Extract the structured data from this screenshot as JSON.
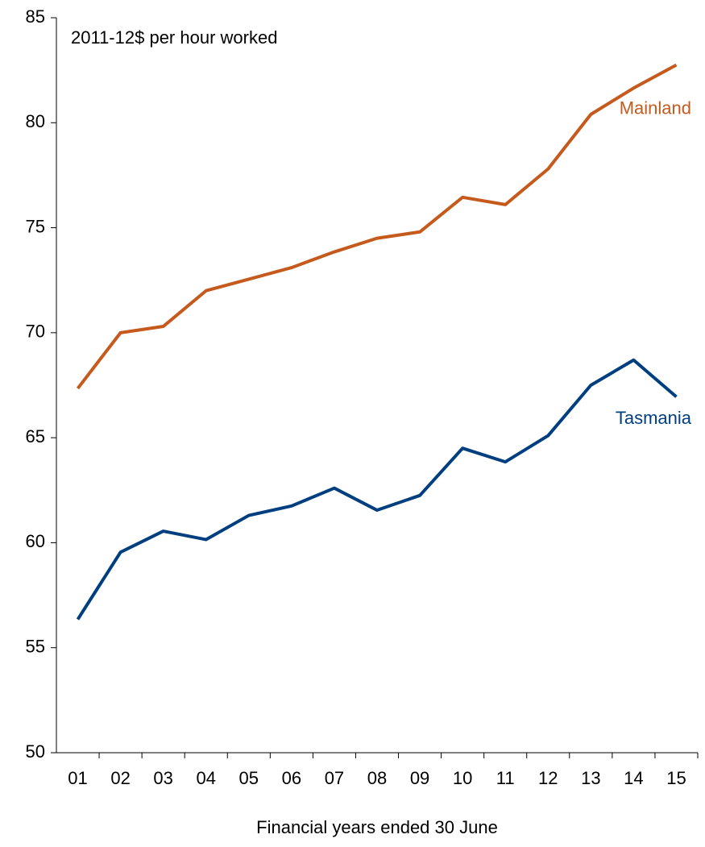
{
  "chart_data": {
    "type": "line",
    "annotation": "2011-12$ per hour worked",
    "x_label": "Financial years ended 30 June",
    "categories": [
      "01",
      "02",
      "03",
      "04",
      "05",
      "06",
      "07",
      "08",
      "09",
      "10",
      "11",
      "12",
      "13",
      "14",
      "15"
    ],
    "series": [
      {
        "name": "Mainland",
        "color": "#c55a1c",
        "values": [
          67.35,
          70.0,
          70.3,
          72.0,
          72.55,
          73.1,
          73.85,
          74.5,
          74.8,
          76.45,
          76.1,
          77.8,
          80.4,
          81.65,
          82.75
        ]
      },
      {
        "name": "Tasmania",
        "color": "#003f7f",
        "values": [
          56.35,
          59.55,
          60.55,
          60.15,
          61.3,
          61.75,
          62.6,
          61.55,
          62.25,
          64.5,
          63.85,
          65.1,
          67.5,
          68.7,
          66.95
        ]
      }
    ],
    "ylim": [
      50,
      85
    ],
    "yticks": [
      50,
      55,
      60,
      65,
      70,
      75,
      80,
      85
    ],
    "grid": false
  }
}
